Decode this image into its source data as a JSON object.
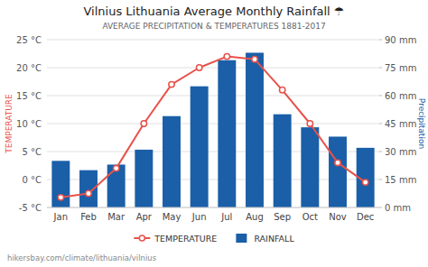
{
  "chart_data": {
    "type": "bar",
    "title": "Vilnius Lithuania Average Monthly Rainfall ☂",
    "subtitle": "AVERAGE PRECIPITATION & TEMPERATURES 1881-2017",
    "footer": "hikersbay.com/climate/lithuania/vilnius",
    "y_label": "TEMPERATURE",
    "y2_label": "Precipitation",
    "categories": [
      "Jan",
      "Feb",
      "Mar",
      "Apr",
      "May",
      "Jun",
      "Jul",
      "Aug",
      "Sep",
      "Oct",
      "Nov",
      "Dec"
    ],
    "series": [
      {
        "name": "TEMPERATURE",
        "type": "line",
        "marker": "circle",
        "color": "#e8524a",
        "values": [
          -3.2,
          -2.5,
          2.0,
          10.0,
          17.0,
          20.0,
          22.0,
          21.5,
          16.0,
          10.0,
          3.0,
          -0.5
        ]
      },
      {
        "name": "RAINFALL",
        "type": "bar",
        "axis": "y2",
        "color": "#1a5fa8",
        "values": [
          25,
          20,
          23,
          31,
          49,
          65,
          79,
          83,
          50,
          43,
          38,
          32
        ]
      }
    ],
    "ylim": [
      -5,
      25
    ],
    "yticks": [
      {
        "value": -5,
        "label": "-5 °C"
      },
      {
        "value": 0,
        "label": "0 °C"
      },
      {
        "value": 5,
        "label": "5 °C"
      },
      {
        "value": 10,
        "label": "10 °C"
      },
      {
        "value": 15,
        "label": "15 °C"
      },
      {
        "value": 20,
        "label": "20 °C"
      },
      {
        "value": 25,
        "label": "25 °C"
      }
    ],
    "y2lim": [
      0,
      90
    ],
    "y2ticks": [
      {
        "value": 0,
        "label": "0 mm"
      },
      {
        "value": 15,
        "label": "15 mm"
      },
      {
        "value": 30,
        "label": "30 mm"
      },
      {
        "value": 45,
        "label": "45 mm"
      },
      {
        "value": 60,
        "label": "60 mm"
      },
      {
        "value": 75,
        "label": "75 mm"
      },
      {
        "value": 90,
        "label": "90 mm"
      }
    ],
    "grid": true,
    "legend": "bottom"
  }
}
